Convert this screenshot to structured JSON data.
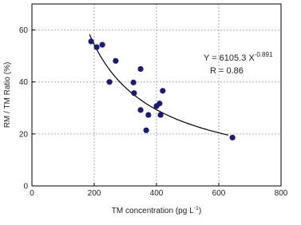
{
  "chart_data": {
    "type": "scatter",
    "x_label": [
      "TM concentration (pg L",
      "-1",
      ")"
    ],
    "y_label": "RM / TM Ratio (%)",
    "x": [
      190,
      208,
      226,
      269,
      249,
      349,
      326,
      328,
      349,
      374,
      367,
      400,
      410,
      413,
      420,
      644
    ],
    "series": [
      {
        "color": "#1c1c6b",
        "values": [
          55.6,
          53.4,
          54.3,
          48.1,
          40,
          45,
          39.8,
          35.7,
          29.2,
          27.3,
          21.4,
          30.7,
          31.7,
          27.3,
          36.6,
          18.6
        ]
      }
    ],
    "fit": {
      "a": 6105.3,
      "b": -0.891,
      "x_range": [
        185,
        630
      ]
    },
    "annotations": [
      "Y = 6105.3 X",
      "-0.891",
      "R = 0.86"
    ],
    "xlim": [
      0,
      800
    ],
    "xticks": [
      0,
      200,
      400,
      600,
      800
    ],
    "ylim": [
      0,
      70
    ],
    "yticks": [
      0,
      20,
      40,
      60
    ],
    "grid": true
  }
}
